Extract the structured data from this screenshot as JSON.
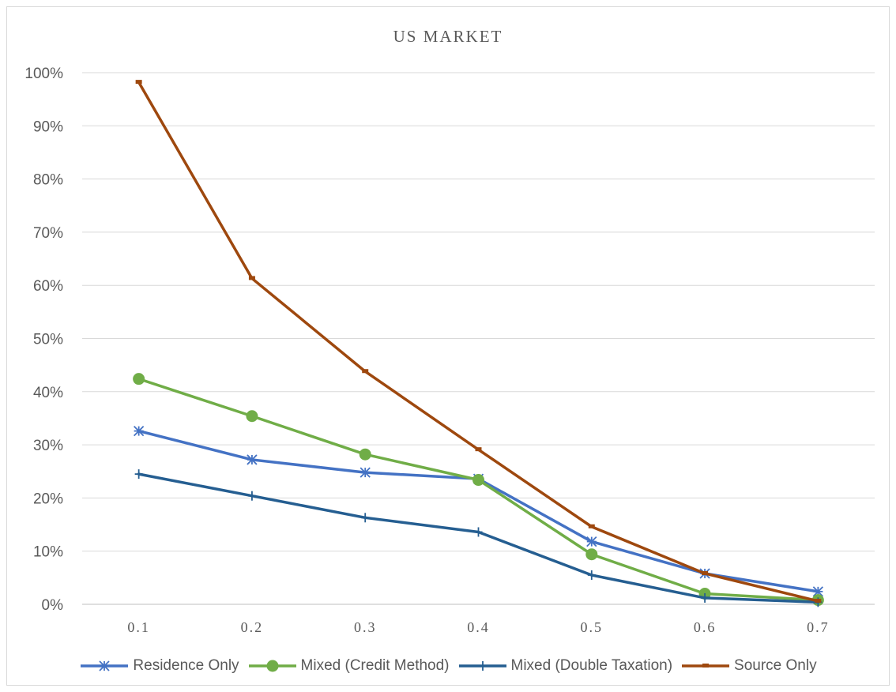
{
  "chart_data": {
    "type": "line",
    "title": "US MARKET",
    "xlabel": "",
    "ylabel": "",
    "categories": [
      "0.1",
      "0.2",
      "0.3",
      "0.4",
      "0.5",
      "0.6",
      "0.7"
    ],
    "y_ticks": [
      "0%",
      "10%",
      "20%",
      "30%",
      "40%",
      "50%",
      "60%",
      "70%",
      "80%",
      "90%",
      "100%"
    ],
    "ylim": [
      0,
      1
    ],
    "grid": true,
    "legend_position": "bottom",
    "series": [
      {
        "name": "Residence Only",
        "color": "#4472c4",
        "marker": "asterisk",
        "values": [
          0.326,
          0.272,
          0.248,
          0.236,
          0.118,
          0.058,
          0.024
        ]
      },
      {
        "name": "Mixed (Credit Method)",
        "color": "#70ad47",
        "marker": "circle",
        "values": [
          0.424,
          0.354,
          0.282,
          0.234,
          0.094,
          0.02,
          0.008
        ]
      },
      {
        "name": "Mixed (Double Taxation)",
        "color": "#255e91",
        "marker": "plus",
        "values": [
          0.245,
          0.204,
          0.163,
          0.136,
          0.055,
          0.012,
          0.004
        ]
      },
      {
        "name": "Source Only",
        "color": "#9e480e",
        "marker": "dash",
        "values": [
          0.982,
          0.613,
          0.438,
          0.291,
          0.146,
          0.058,
          0.006
        ]
      }
    ]
  }
}
